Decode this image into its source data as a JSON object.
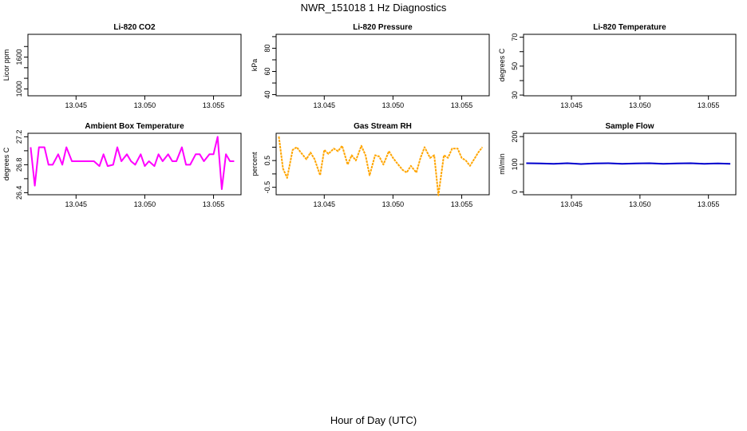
{
  "title": "NWR_151018  1 Hz Diagnostics",
  "xlabel": "Hour of Day (UTC)",
  "chart_data": [
    {
      "type": "line",
      "title": "Li-820 CO2",
      "ylabel": "Licor ppm",
      "xlim": [
        13.0415,
        13.057
      ],
      "xticks": [
        13.045,
        13.05,
        13.055
      ],
      "xtick_labels": [
        "13.045",
        "13.050",
        "13.055"
      ],
      "ylim": [
        870,
        2030
      ],
      "yticks": [
        1000,
        1200,
        1400,
        1600,
        1800
      ],
      "ytick_labels": [
        "1000",
        "",
        "",
        "1600",
        ""
      ],
      "color": "#000000",
      "series": []
    },
    {
      "type": "line",
      "title": "Li-820 Pressure",
      "ylabel": "kPa",
      "xlim": [
        13.0415,
        13.057
      ],
      "xticks": [
        13.045,
        13.05,
        13.055
      ],
      "xtick_labels": [
        "13.045",
        "13.050",
        "13.055"
      ],
      "ylim": [
        39,
        92
      ],
      "yticks": [
        40,
        50,
        60,
        70,
        80,
        90
      ],
      "ytick_labels": [
        "40",
        "",
        "60",
        "",
        "80",
        ""
      ],
      "color": "#000000",
      "series": []
    },
    {
      "type": "line",
      "title": "Li-820 Temperature",
      "ylabel": "degrees C",
      "xlim": [
        13.0415,
        13.057
      ],
      "xticks": [
        13.045,
        13.05,
        13.055
      ],
      "xtick_labels": [
        "13.045",
        "13.050",
        "13.055"
      ],
      "ylim": [
        29.5,
        72
      ],
      "yticks": [
        30,
        40,
        50,
        60,
        70
      ],
      "ytick_labels": [
        "30",
        "",
        "50",
        "",
        "70"
      ],
      "color": "#000000",
      "series": []
    },
    {
      "type": "line",
      "title": "Ambient Box Temperature",
      "ylabel": "degrees C",
      "xlim": [
        13.0415,
        13.057
      ],
      "xticks": [
        13.045,
        13.05,
        13.055
      ],
      "xtick_labels": [
        "13.045",
        "13.050",
        "13.055"
      ],
      "ylim": [
        26.37,
        27.25
      ],
      "yticks": [
        26.4,
        26.6,
        26.8,
        27.0,
        27.2
      ],
      "ytick_labels": [
        "26.4",
        "",
        "26.8",
        "",
        "27.2"
      ],
      "color": "#ff00ff",
      "series": [
        {
          "x": [
            13.0417,
            13.042,
            13.0423,
            13.0427,
            13.043,
            13.0433,
            13.0437,
            13.044,
            13.0443,
            13.0447,
            13.045,
            13.0453,
            13.0457,
            13.046,
            13.0463,
            13.0467,
            13.047,
            13.0473,
            13.0477,
            13.048,
            13.0483,
            13.0487,
            13.049,
            13.0493,
            13.0497,
            13.05,
            13.0503,
            13.0507,
            13.051,
            13.0513,
            13.0517,
            13.052,
            13.0523,
            13.0527,
            13.053,
            13.0533,
            13.0537,
            13.054,
            13.0543,
            13.0547,
            13.055,
            13.0553,
            13.0556,
            13.0559,
            13.0562,
            13.0565
          ],
          "y": [
            27.05,
            26.5,
            27.05,
            27.05,
            26.8,
            26.8,
            26.95,
            26.8,
            27.05,
            26.85,
            26.85,
            26.85,
            26.85,
            26.85,
            26.85,
            26.78,
            26.95,
            26.78,
            26.8,
            27.05,
            26.85,
            26.95,
            26.85,
            26.8,
            26.95,
            26.78,
            26.85,
            26.78,
            26.95,
            26.85,
            26.95,
            26.85,
            26.85,
            27.05,
            26.8,
            26.8,
            26.95,
            26.95,
            26.85,
            26.95,
            26.95,
            27.2,
            26.45,
            26.95,
            26.85,
            26.85
          ]
        }
      ]
    },
    {
      "type": "line",
      "title": "Gas Stream RH",
      "ylabel": "percent",
      "xlim": [
        13.0415,
        13.057
      ],
      "xticks": [
        13.045,
        13.05,
        13.055
      ],
      "xtick_labels": [
        "13.045",
        "13.050",
        "13.055"
      ],
      "ylim": [
        -0.78,
        1.52
      ],
      "yticks": [
        -0.5,
        0.0,
        0.5,
        1.0
      ],
      "ytick_labels": [
        "-0.5",
        "",
        "0.5",
        ""
      ],
      "color": "#ffa500",
      "series": [
        {
          "x": [
            13.0417,
            13.042,
            13.0423,
            13.0427,
            13.043,
            13.0433,
            13.0437,
            13.044,
            13.0443,
            13.0447,
            13.045,
            13.0453,
            13.0457,
            13.046,
            13.0463,
            13.0467,
            13.047,
            13.0473,
            13.0477,
            13.048,
            13.0483,
            13.0487,
            13.049,
            13.0493,
            13.0497,
            13.05,
            13.0503,
            13.0507,
            13.051,
            13.0513,
            13.0517,
            13.052,
            13.0523,
            13.0527,
            13.053,
            13.0533,
            13.0537,
            13.054,
            13.0543,
            13.0547,
            13.055,
            13.0553,
            13.0556,
            13.0559,
            13.0562,
            13.0565
          ],
          "y": [
            1.4,
            0.2,
            -0.15,
            0.9,
            1.0,
            0.8,
            0.55,
            0.8,
            0.55,
            -0.05,
            0.9,
            0.75,
            0.95,
            0.85,
            1.05,
            0.35,
            0.7,
            0.5,
            1.05,
            0.7,
            -0.05,
            0.7,
            0.65,
            0.35,
            0.85,
            0.6,
            0.4,
            0.15,
            0.05,
            0.3,
            0.05,
            0.6,
            1.0,
            0.6,
            0.7,
            -0.8,
            0.7,
            0.6,
            0.95,
            0.95,
            0.6,
            0.5,
            0.3,
            0.55,
            0.8,
            1.0
          ]
        }
      ]
    },
    {
      "type": "line",
      "title": "Sample Flow",
      "ylabel": "ml/min",
      "xlim": [
        13.0415,
        13.057
      ],
      "xticks": [
        13.045,
        13.05,
        13.055
      ],
      "xtick_labels": [
        "13.045",
        "13.050",
        "13.055"
      ],
      "ylim": [
        -10,
        212
      ],
      "yticks": [
        0,
        100,
        200
      ],
      "ytick_labels": [
        "0",
        "100",
        "200"
      ],
      "color": "#0000cd",
      "series": [
        {
          "x": [
            13.0417,
            13.0427,
            13.0437,
            13.0447,
            13.0457,
            13.0467,
            13.0477,
            13.0487,
            13.0497,
            13.0507,
            13.0517,
            13.0527,
            13.0537,
            13.0547,
            13.0557,
            13.0566
          ],
          "y": [
            104,
            103,
            102,
            104,
            101,
            103,
            104,
            102,
            103,
            104,
            102,
            103,
            104,
            102,
            103,
            102
          ]
        }
      ]
    }
  ]
}
